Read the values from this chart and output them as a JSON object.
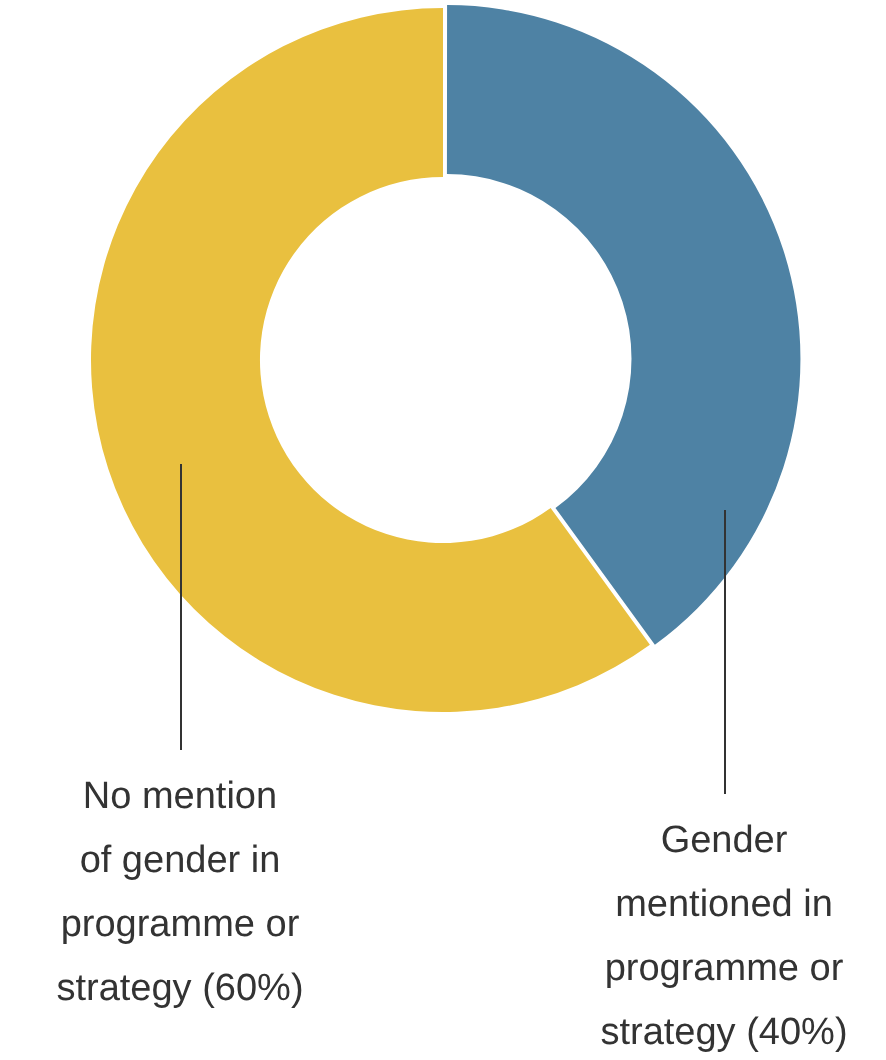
{
  "chart_data": {
    "type": "donut",
    "categories": [
      "Gender\nmentioned in\nprogramme or\nstrategy",
      "No mention\nof gender in\nprogramme or\nstrategy"
    ],
    "values": [
      40,
      60
    ],
    "colors": [
      "#4e82a4",
      "#e9c03f"
    ],
    "value_labels": [
      "(40%)",
      "(60%)"
    ],
    "legend": false
  }
}
